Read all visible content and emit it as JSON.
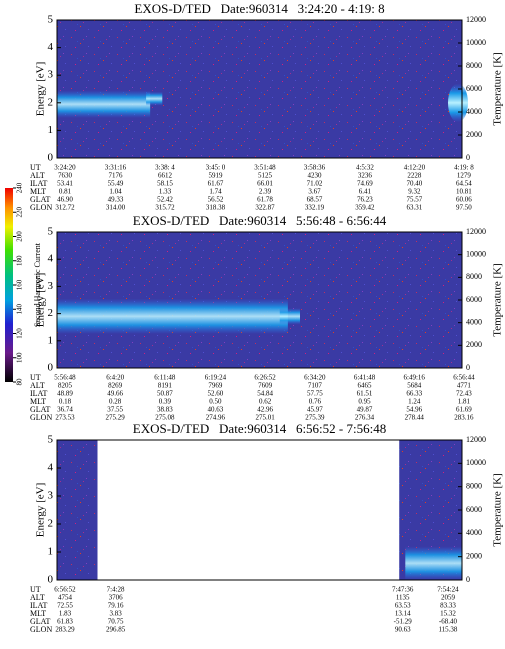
{
  "chart_data": {
    "type": "spectrogram",
    "colorbar": {
      "label": "Second Harmonic Current",
      "ticks": [
        80,
        100,
        120,
        140,
        160,
        180,
        200,
        220,
        240
      ]
    },
    "panels": [
      {
        "title": "EXOS-D/TED   Date:960314   3:24:20 - 4:19: 8",
        "ylabel": "Energy [eV]",
        "ylim": [
          0,
          5
        ],
        "yticks": [
          0,
          1,
          2,
          3,
          4,
          5
        ],
        "y2label": "Temperature [K]",
        "y2lim": [
          0,
          12000
        ],
        "y2ticks": [
          0,
          2000,
          4000,
          6000,
          8000,
          10000,
          12000
        ],
        "table": [
          {
            "label": "UT",
            "values": [
              "3:24:20",
              "3:31:16",
              "3:38: 4",
              "3:45: 0",
              "3:51:48",
              "3:58:36",
              "4:5:32",
              "4:12:20",
              "4:19: 8"
            ]
          },
          {
            "label": "ALT",
            "values": [
              "7630",
              "7176",
              "6612",
              "5919",
              "5125",
              "4230",
              "3236",
              "2228",
              "1279"
            ]
          },
          {
            "label": "ILAT",
            "values": [
              "53.41",
              "55.49",
              "58.15",
              "61.67",
              "66.01",
              "71.02",
              "74.69",
              "70.40",
              "64.54"
            ]
          },
          {
            "label": "MLT",
            "values": [
              "0.81",
              "1.04",
              "1.33",
              "1.74",
              "2.39",
              "3.67",
              "6.41",
              "9.32",
              "10.81"
            ]
          },
          {
            "label": "GLAT",
            "values": [
              "46.90",
              "49.33",
              "52.42",
              "56.52",
              "61.78",
              "68.57",
              "76.23",
              "75.57",
              "60.06"
            ]
          },
          {
            "label": "GLON",
            "values": [
              "312.72",
              "314.00",
              "315.72",
              "318.38",
              "322.87",
              "332.19",
              "359.42",
              "63.31",
              "97.50"
            ]
          }
        ]
      },
      {
        "title": "EXOS-D/TED   Date:960314   5:56:48 - 6:56:44",
        "ylabel": "Energy [eV]",
        "ylim": [
          0,
          5
        ],
        "yticks": [
          0,
          1,
          2,
          3,
          4,
          5
        ],
        "y2label": "Temperature [K]",
        "y2lim": [
          0,
          12000
        ],
        "y2ticks": [
          0,
          2000,
          4000,
          6000,
          8000,
          10000,
          12000
        ],
        "table": [
          {
            "label": "UT",
            "values": [
              "5:56:48",
              "6:4:20",
              "6:11:48",
              "6:19:24",
              "6:26:52",
              "6:34:20",
              "6:41:48",
              "6:49:16",
              "6:56:44"
            ]
          },
          {
            "label": "ALT",
            "values": [
              "8205",
              "8269",
              "8191",
              "7969",
              "7609",
              "7107",
              "6465",
              "5684",
              "4771"
            ]
          },
          {
            "label": "ILAT",
            "values": [
              "48.89",
              "49.66",
              "50.87",
              "52.60",
              "54.84",
              "57.75",
              "61.51",
              "66.33",
              "72.43"
            ]
          },
          {
            "label": "MLT",
            "values": [
              "0.18",
              "0.28",
              "0.39",
              "0.50",
              "0.62",
              "0.76",
              "0.95",
              "1.24",
              "1.81"
            ]
          },
          {
            "label": "GLAT",
            "values": [
              "36.74",
              "37.55",
              "38.83",
              "40.63",
              "42.96",
              "45.97",
              "49.87",
              "54.96",
              "61.69"
            ]
          },
          {
            "label": "GLON",
            "values": [
              "273.53",
              "275.29",
              "275.08",
              "274.96",
              "275.01",
              "275.39",
              "276.34",
              "278.44",
              "283.16"
            ]
          }
        ]
      },
      {
        "title": "EXOS-D/TED   Date:960314   6:56:52 - 7:56:48",
        "ylabel": "Energy [eV]",
        "ylim": [
          0,
          5
        ],
        "yticks": [
          0,
          1,
          2,
          3,
          4,
          5
        ],
        "y2label": "Temperature [K]",
        "y2lim": [
          0,
          12000
        ],
        "y2ticks": [
          0,
          2000,
          4000,
          6000,
          8000,
          10000,
          12000
        ],
        "table": [
          {
            "label": "UT",
            "values": [
              "6:56:52",
              "7:4:28",
              "7:47:36",
              "7:54:24"
            ]
          },
          {
            "label": "ALT",
            "values": [
              "4754",
              "3706",
              "1135",
              "2059"
            ]
          },
          {
            "label": "ILAT",
            "values": [
              "72.55",
              "79.16",
              "63.53",
              "83.33"
            ]
          },
          {
            "label": "MLT",
            "values": [
              "1.83",
              "3.83",
              "13.14",
              "15.32"
            ]
          },
          {
            "label": "GLAT",
            "values": [
              "61.83",
              "70.75",
              "-51.29",
              "-68.40"
            ]
          },
          {
            "label": "GLON",
            "values": [
              "283.29",
              "296.85",
              "90.63",
              "115.38"
            ]
          }
        ]
      }
    ]
  }
}
